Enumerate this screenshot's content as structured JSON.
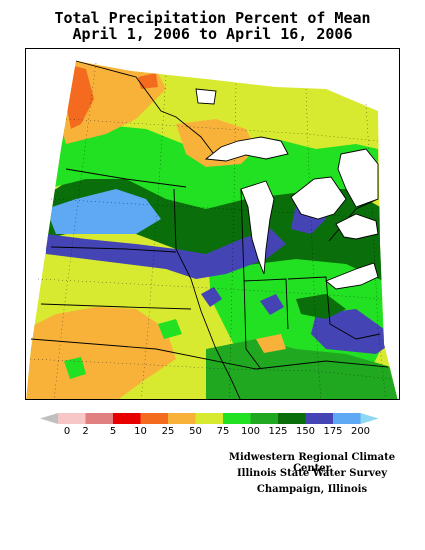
{
  "title": {
    "line1": "Total Precipitation Percent of Mean",
    "line2": "April 1, 2006 to April 16, 2006"
  },
  "legend": {
    "ticks": [
      "0",
      "2",
      "5",
      "10",
      "25",
      "50",
      "75",
      "100",
      "125",
      "150",
      "175",
      "200"
    ],
    "colors": [
      "#c0c0c0",
      "#f7c6c6",
      "#e08080",
      "#e80000",
      "#f46a1e",
      "#f8b23a",
      "#d8ea30",
      "#22e022",
      "#20a820",
      "#0a6e0a",
      "#4444b4",
      "#5ea8f4",
      "#8ed8f4"
    ]
  },
  "palette": {
    "light_gray": "#c0c0c0",
    "pink": "#f7c6c6",
    "rose": "#e08080",
    "red": "#e80000",
    "orange_red": "#f46a1e",
    "orange": "#f8b23a",
    "yellow_green": "#d8ea30",
    "green": "#22e022",
    "med_green": "#20a820",
    "dark_green": "#0a6e0a",
    "blue_purple": "#4444b4",
    "light_blue": "#5ea8f4"
  },
  "credits": {
    "line1": "Midwestern Regional Climate Center",
    "line2": "Illinois State Water Survey",
    "line3": "Champaign, Illinois"
  }
}
